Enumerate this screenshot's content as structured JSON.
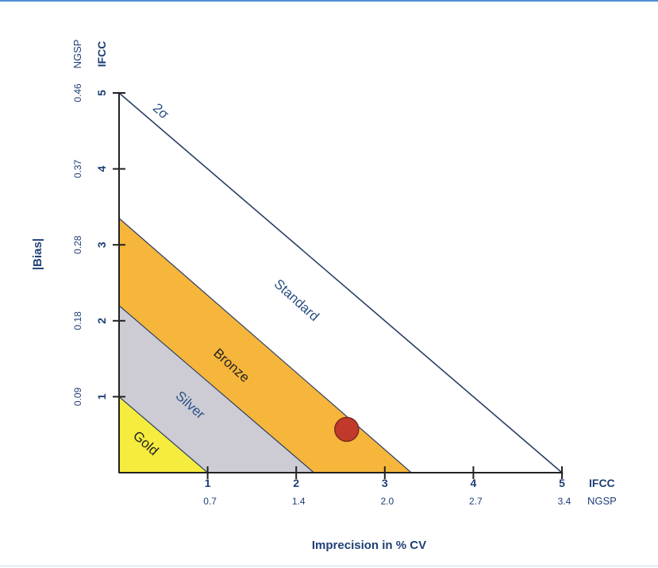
{
  "chart_data": {
    "type": "area",
    "xlabel": "Imprecision in % CV",
    "ylabel": "|Bias|",
    "xlim": [
      0,
      5
    ],
    "ylim": [
      0,
      5
    ],
    "x_ticks": [
      1,
      2,
      3,
      4,
      5
    ],
    "y_ticks": [
      1,
      2,
      3,
      4,
      5
    ],
    "x_scale_primary": "IFCC",
    "x_scale_secondary": "NGSP",
    "x_secondary_ticks": [
      "0.7",
      "1.4",
      "2.0",
      "2.7",
      "3.4"
    ],
    "y_scale_primary": "IFCC",
    "y_scale_secondary": "NGSP",
    "y_secondary_ticks": [
      "0.09",
      "0.18",
      "0.28",
      "0.37",
      "0.46"
    ],
    "grid": false,
    "zones": [
      {
        "name": "Gold",
        "x_intercept": 1.0,
        "y_intercept": 1.0,
        "color": "#f5ec3e"
      },
      {
        "name": "Silver",
        "x_intercept": 2.2,
        "y_intercept": 2.2,
        "color": "#cdccd4"
      },
      {
        "name": "Bronze",
        "x_intercept": 3.3,
        "y_intercept": 3.35,
        "color": "#f6b53b"
      },
      {
        "name": "Standard",
        "x_intercept": 5.0,
        "y_intercept": 5.0,
        "color": "#ffffff"
      }
    ],
    "boundary_label": "2σ",
    "points": [
      {
        "x": 2.57,
        "y": 0.57,
        "color": "#c0392b"
      }
    ]
  }
}
